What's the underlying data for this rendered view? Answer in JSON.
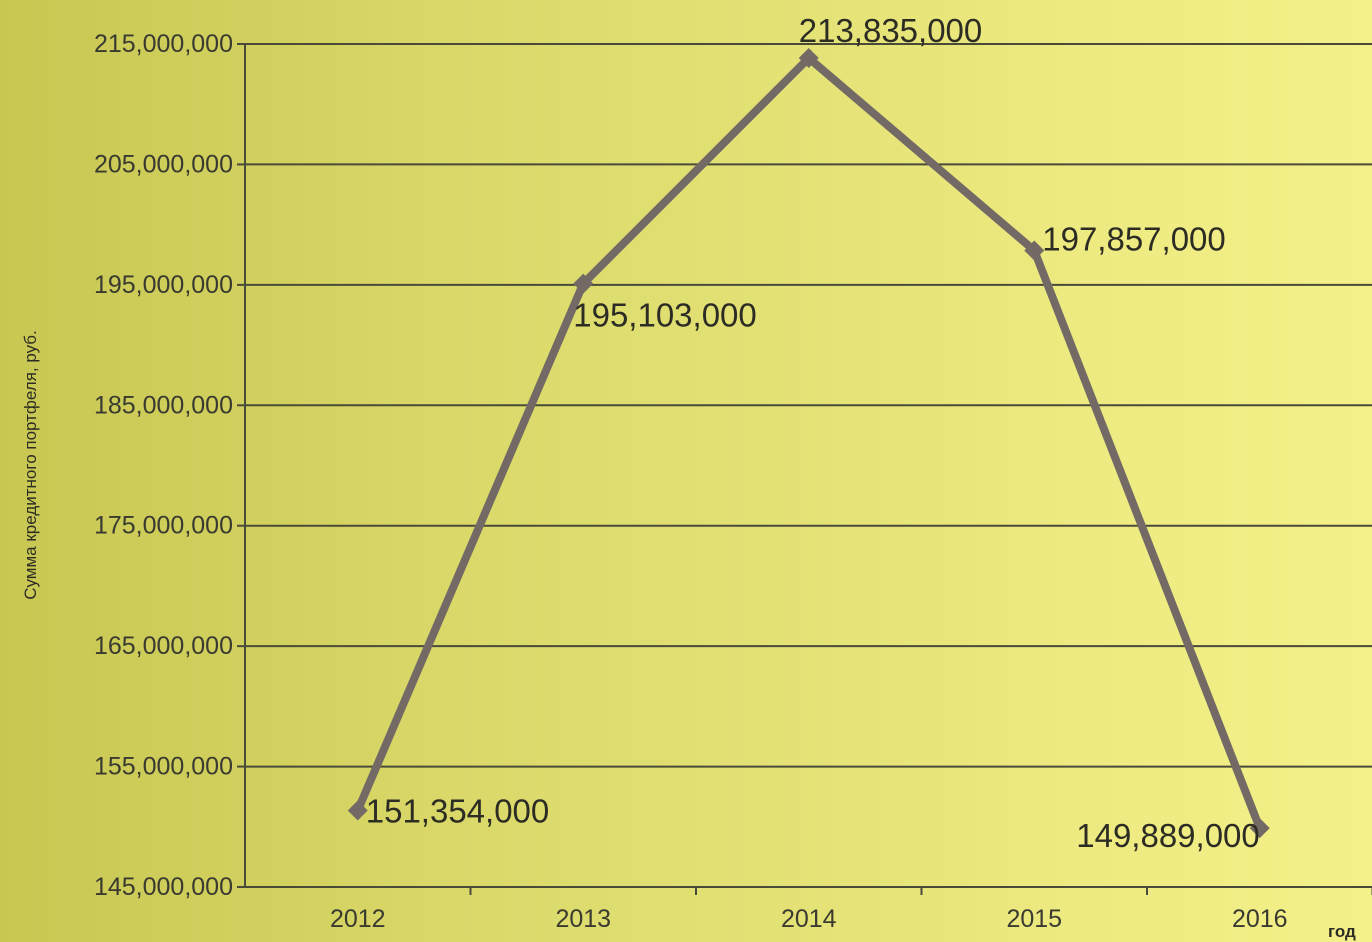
{
  "chart_data": {
    "type": "line",
    "categories": [
      "2012",
      "2013",
      "2014",
      "2015",
      "2016"
    ],
    "series": [
      {
        "values": [
          151354000,
          195103000,
          213835000,
          197857000,
          149889000
        ]
      }
    ],
    "data_labels": [
      "151,354,000",
      "195,103,000",
      "213,835,000",
      "197,857,000",
      "149,889,000"
    ],
    "y_ticks": [
      "145,000,000",
      "155,000,000",
      "165,000,000",
      "175,000,000",
      "185,000,000",
      "195,000,000",
      "205,000,000",
      "215,000,000"
    ],
    "ylabel": "Сумма кредитного портфеля, руб.",
    "xlabel": "год",
    "ylim": [
      145000000,
      215000000
    ],
    "grid": true,
    "colors": {
      "line": "#736a66",
      "grid": "#4a4a3a",
      "axis": "#4a4a3a"
    }
  }
}
